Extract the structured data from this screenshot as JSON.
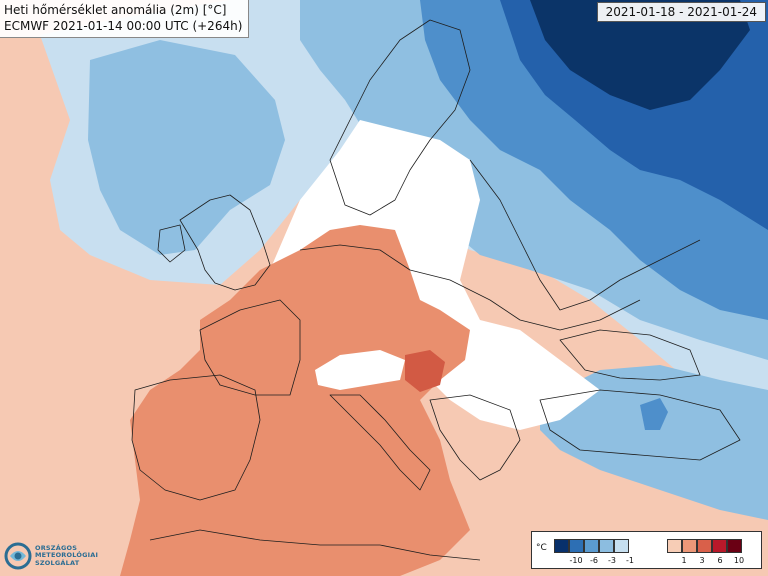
{
  "header": {
    "title": "Heti hőmérséklet anomália (2m) [°C]",
    "model_run": "ECMWF 2021-01-14 00:00 UTC (+264h)"
  },
  "period": "2021-01-18 - 2021-01-24",
  "logo": {
    "lines": [
      "ORSZÁGOS",
      "METEOROLÓGIAI",
      "SZOLGÁLAT"
    ]
  },
  "legend": {
    "unit": "°C",
    "cold_ticks": [
      "-10",
      "-6",
      "-3",
      "-1"
    ],
    "warm_ticks": [
      "1",
      "3",
      "6",
      "10"
    ],
    "cold_colors": [
      "#08306b",
      "#2d6fb4",
      "#5b9bd0",
      "#8cbde0",
      "#c6dff0"
    ],
    "warm_colors": [
      "#f7cdb6",
      "#ec9778",
      "#d9604a",
      "#b8192a",
      "#6a0014"
    ]
  },
  "colors": {
    "neutral": "#ffffff",
    "ocean_light_warm": "#f6c9b3",
    "land_warm": "#e98f6e",
    "land_warm_strong": "#d25a44",
    "cold_light": "#c8dff0",
    "cold_mid": "#8fbfe1",
    "cold": "#4e8fcb",
    "cold_strong": "#2461ab",
    "cold_extreme": "#0b3468",
    "border_line": "#1e1e1e"
  }
}
